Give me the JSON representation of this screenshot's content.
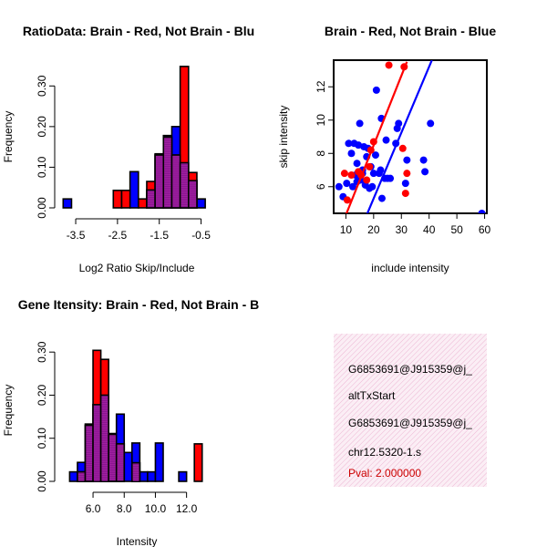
{
  "chart_data": [
    {
      "type": "bar",
      "title": "RatioData: Brain - Red, Not Brain - Blu",
      "xlabel": "Log2 Ratio Skip/Include",
      "ylabel": "Frequency",
      "xlim": [
        -3.85,
        -0.25
      ],
      "ylim": [
        0,
        0.35
      ],
      "xticks": [
        -3.5,
        -2.5,
        -1.5,
        -0.5
      ],
      "yticks": [
        0.0,
        0.1,
        0.2,
        0.3
      ],
      "bin_width": 0.2,
      "series": [
        {
          "name": "Not Brain",
          "color": "#0000ff",
          "bins": [
            [
              -3.8,
              0.022
            ],
            [
              -2.2,
              0.089
            ],
            [
              -1.8,
              0.044
            ],
            [
              -1.6,
              0.133
            ],
            [
              -1.4,
              0.178
            ],
            [
              -1.2,
              0.2
            ],
            [
              -1.0,
              0.111
            ],
            [
              -0.8,
              0.067
            ],
            [
              -0.6,
              0.022
            ]
          ]
        },
        {
          "name": "Brain",
          "color": "#ff0000",
          "bins": [
            [
              -2.6,
              0.043
            ],
            [
              -2.4,
              0.043
            ],
            [
              -2.0,
              0.022
            ],
            [
              -1.8,
              0.065
            ],
            [
              -1.6,
              0.13
            ],
            [
              -1.4,
              0.174
            ],
            [
              -1.2,
              0.13
            ],
            [
              -1.0,
              0.348
            ],
            [
              -0.8,
              0.087
            ]
          ]
        }
      ]
    },
    {
      "type": "scatter",
      "title": "Brain - Red, Not Brain - Blue",
      "xlabel": "include intensity",
      "ylabel": "skip intensity",
      "xlim": [
        5.6,
        60.8
      ],
      "ylim": [
        4.4,
        13.6
      ],
      "xticks": [
        10,
        20,
        30,
        40,
        50,
        60
      ],
      "yticks": [
        6,
        8,
        10,
        12
      ],
      "series": [
        {
          "name": "Not Brain",
          "color": "#0000ff",
          "points": [
            [
              7.5,
              6.0
            ],
            [
              9.0,
              5.4
            ],
            [
              10.3,
              6.2
            ],
            [
              11.0,
              8.6
            ],
            [
              12.0,
              8.0
            ],
            [
              12.5,
              6.0
            ],
            [
              13.0,
              8.6
            ],
            [
              13.5,
              6.7
            ],
            [
              14.0,
              7.4
            ],
            [
              14.5,
              8.5
            ],
            [
              15.0,
              9.8
            ],
            [
              15.3,
              6.4
            ],
            [
              16.0,
              6.8
            ],
            [
              16.5,
              8.4
            ],
            [
              17.0,
              6.1
            ],
            [
              17.5,
              7.8
            ],
            [
              18.0,
              8.3
            ],
            [
              18.5,
              5.9
            ],
            [
              19.0,
              7.2
            ],
            [
              19.5,
              6.0
            ],
            [
              20.0,
              6.8
            ],
            [
              20.7,
              7.9
            ],
            [
              21.0,
              11.8
            ],
            [
              22.0,
              6.8
            ],
            [
              22.5,
              7.0
            ],
            [
              23.0,
              5.3
            ],
            [
              24.0,
              6.5
            ],
            [
              25.0,
              6.5
            ],
            [
              26.0,
              6.5
            ],
            [
              28.0,
              8.6
            ],
            [
              28.5,
              9.5
            ],
            [
              29.0,
              9.8
            ],
            [
              31.5,
              6.2
            ],
            [
              32.0,
              7.6
            ],
            [
              38.0,
              7.6
            ],
            [
              38.5,
              6.9
            ],
            [
              40.5,
              9.8
            ],
            [
              59.0,
              4.4
            ],
            [
              22.8,
              10.1
            ],
            [
              24.5,
              8.8
            ],
            [
              14.0,
              6.3
            ],
            [
              16.0,
              7.0
            ]
          ]
        },
        {
          "name": "Brain",
          "color": "#ff0000",
          "points": [
            [
              9.5,
              6.8
            ],
            [
              10.5,
              5.2
            ],
            [
              12.0,
              6.7
            ],
            [
              14.5,
              6.9
            ],
            [
              15.5,
              6.7
            ],
            [
              17.5,
              6.4
            ],
            [
              18.5,
              7.2
            ],
            [
              19.0,
              8.2
            ],
            [
              25.5,
              13.3
            ],
            [
              30.5,
              8.3
            ],
            [
              31.0,
              13.2
            ],
            [
              31.5,
              5.6
            ],
            [
              32.0,
              6.8
            ],
            [
              20.0,
              8.7
            ]
          ]
        }
      ],
      "fits": [
        {
          "name": "Not Brain fit",
          "color": "#0000ff",
          "from": [
            17.5,
            4.3
          ],
          "to": [
            41.0,
            13.6
          ]
        },
        {
          "name": "Brain fit",
          "color": "#ff0000",
          "from": [
            10.0,
            4.3
          ],
          "to": [
            32.0,
            13.5
          ]
        }
      ]
    },
    {
      "type": "bar",
      "title": "Gene Itensity: Brain - Red, Not Brain - B",
      "xlabel": "Intensity",
      "ylabel": "Frequency",
      "xlim": [
        3.95,
        13.6
      ],
      "ylim": [
        0,
        0.33
      ],
      "xticks": [
        6,
        8,
        10,
        12
      ],
      "yticks": [
        0.0,
        0.1,
        0.2,
        0.3
      ],
      "bin_width": 0.5,
      "series": [
        {
          "name": "Not Brain",
          "color": "#0000ff",
          "bins": [
            [
              4.5,
              0.022
            ],
            [
              5.0,
              0.044
            ],
            [
              5.5,
              0.133
            ],
            [
              6.0,
              0.178
            ],
            [
              6.5,
              0.2
            ],
            [
              7.0,
              0.111
            ],
            [
              7.5,
              0.156
            ],
            [
              8.0,
              0.067
            ],
            [
              8.5,
              0.089
            ],
            [
              9.0,
              0.022
            ],
            [
              9.5,
              0.022
            ],
            [
              10.0,
              0.089
            ],
            [
              11.5,
              0.022
            ]
          ]
        },
        {
          "name": "Brain",
          "color": "#ff0000",
          "bins": [
            [
              5.0,
              0.022
            ],
            [
              5.5,
              0.13
            ],
            [
              6.0,
              0.304
            ],
            [
              6.5,
              0.283
            ],
            [
              7.0,
              0.109
            ],
            [
              7.5,
              0.087
            ],
            [
              8.5,
              0.043
            ],
            [
              12.5,
              0.087
            ]
          ]
        }
      ]
    }
  ],
  "info_panel": {
    "lines": [
      "G6853691@J915359@j_",
      "altTxStart",
      "G6853691@J915359@j_",
      "chr12.5320-1.s"
    ],
    "pval": "Pval: 2.000000"
  }
}
